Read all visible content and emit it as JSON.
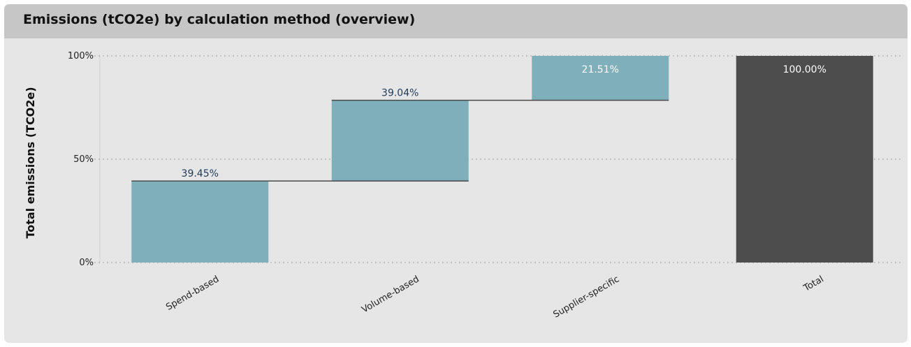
{
  "panel": {
    "title": "Emissions (tCO2e) by calculation method (overview)"
  },
  "chart_data": {
    "type": "bar",
    "subtype": "waterfall",
    "title": "Emissions (tCO2e) by calculation method (overview)",
    "xlabel": "",
    "ylabel": "Total emissions (TCO2e)",
    "ylim": [
      0,
      100
    ],
    "yticks": [
      "0%",
      "50%",
      "100%"
    ],
    "grid": true,
    "categories": [
      "Spend-based",
      "Volume-based",
      "Supplier-specific",
      "Total"
    ],
    "values": [
      39.45,
      39.04,
      21.51,
      100.0
    ],
    "labels": [
      "39.45%",
      "39.04%",
      "21.51%",
      "100.00%"
    ],
    "is_total": [
      false,
      false,
      false,
      true
    ],
    "colors": {
      "step": "#7fafba",
      "total": "#4d4d4d",
      "connector": "#4a4a4a",
      "label_dark": "#1f3b5a",
      "label_light": "#ffffff"
    }
  }
}
